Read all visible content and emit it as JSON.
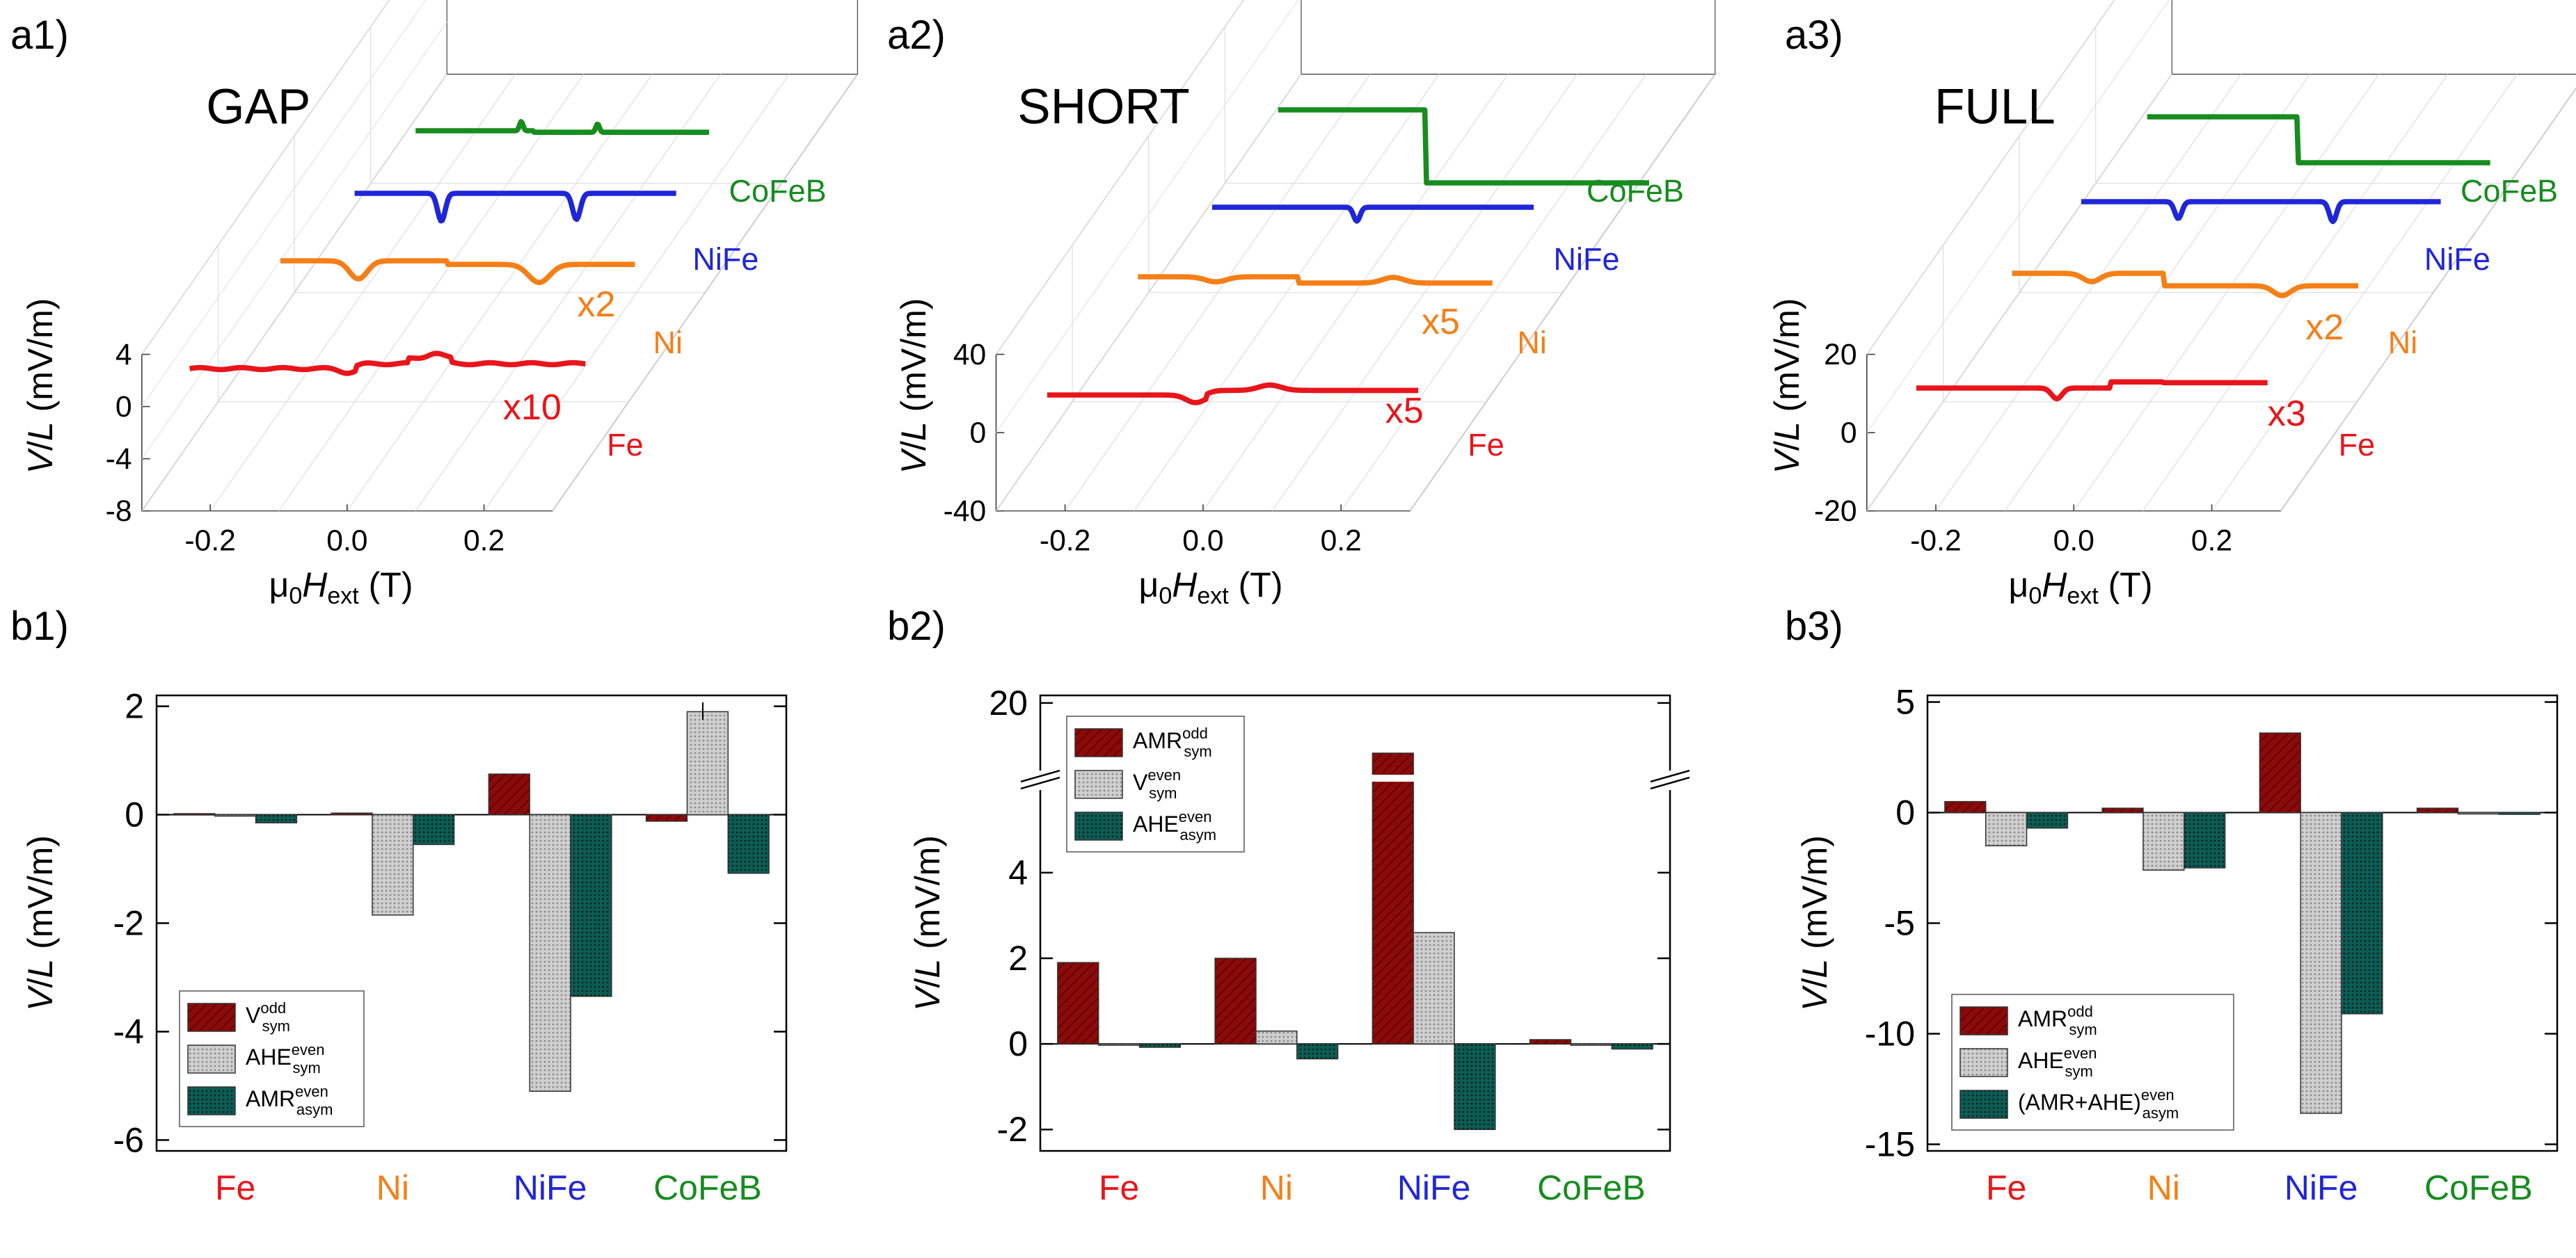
{
  "colors": {
    "Fe": "#e8151b",
    "Ni": "#f57f17",
    "NiFe": "#2026d8",
    "CoFeB": "#178c1f",
    "odd": "#8b0a0a",
    "even": "#c8c8c8",
    "third": "#0d5c54"
  },
  "chart_data": [
    {
      "panel": "a1",
      "type": "line",
      "title": "GAP",
      "x": [
        -0.3,
        -0.2,
        -0.1,
        0.0,
        0.1,
        0.2,
        0.3
      ],
      "xlabel": "μ0Hext (T)",
      "ylabel": "V/L (mV/m)",
      "yticks": [
        "4",
        "0",
        "-4",
        "-8"
      ],
      "xticks": [
        "-0.2",
        "0.0",
        "0.2"
      ],
      "ylim": [
        -8,
        4
      ],
      "series": [
        {
          "name": "Fe",
          "scale": "x10"
        },
        {
          "name": "Ni",
          "scale": "x2"
        },
        {
          "name": "NiFe",
          "scale": ""
        },
        {
          "name": "CoFeB",
          "scale": ""
        }
      ]
    },
    {
      "panel": "a2",
      "type": "line",
      "title": "SHORT",
      "xlabel": "μ0Hext (T)",
      "ylabel": "V/L (mV/m)",
      "yticks": [
        "40",
        "0",
        "-40"
      ],
      "xticks": [
        "-0.2",
        "0.0",
        "0.2"
      ],
      "ylim": [
        -40,
        40
      ],
      "series": [
        {
          "name": "Fe",
          "scale": "x5"
        },
        {
          "name": "Ni",
          "scale": "x5"
        },
        {
          "name": "NiFe",
          "scale": ""
        },
        {
          "name": "CoFeB",
          "scale": ""
        }
      ]
    },
    {
      "panel": "a3",
      "type": "line",
      "title": "FULL",
      "xlabel": "μ0Hext (T)",
      "ylabel": "V/L (mV/m)",
      "yticks": [
        "20",
        "0",
        "-20"
      ],
      "xticks": [
        "-0.2",
        "0.0",
        "0.2"
      ],
      "ylim": [
        -20,
        20
      ],
      "series": [
        {
          "name": "Fe",
          "scale": "x3"
        },
        {
          "name": "Ni",
          "scale": "x2"
        },
        {
          "name": "NiFe",
          "scale": ""
        },
        {
          "name": "CoFeB",
          "scale": ""
        }
      ]
    },
    {
      "panel": "b1",
      "type": "bar",
      "categories": [
        "Fe",
        "Ni",
        "NiFe",
        "CoFeB"
      ],
      "ylabel": "V/L (mV/m)",
      "ylim": [
        -6,
        2
      ],
      "yticks": [
        "2",
        "0",
        "-2",
        "-4",
        "-6"
      ],
      "series": [
        {
          "name": "V_sym^odd",
          "main": "V",
          "sub": "sym",
          "sup": "odd",
          "values": [
            0.02,
            0.03,
            0.75,
            -0.12
          ]
        },
        {
          "name": "AHE_sym^even",
          "main": "AHE",
          "sub": "sym",
          "sup": "even",
          "values": [
            0.0,
            -1.85,
            -5.1,
            1.9
          ]
        },
        {
          "name": "AMR_asym^even",
          "main": "AMR",
          "sub": "asym",
          "sup": "even",
          "values": [
            -0.15,
            -0.55,
            -3.35,
            -1.08
          ]
        }
      ]
    },
    {
      "panel": "b2",
      "type": "bar",
      "categories": [
        "Fe",
        "Ni",
        "NiFe",
        "CoFeB"
      ],
      "ylabel": "V/L (mV/m)",
      "ylim": [
        -2.5,
        20
      ],
      "yticks": [
        "20",
        "4",
        "2",
        "0",
        "-2"
      ],
      "series": [
        {
          "name": "AMR_sym^odd",
          "main": "AMR",
          "sub": "sym",
          "sup": "odd",
          "values": [
            1.9,
            2.0,
            18.0,
            0.1
          ]
        },
        {
          "name": "V_sym^even",
          "main": "V",
          "sub": "sym",
          "sup": "even",
          "values": [
            0.0,
            0.3,
            2.6,
            0.0
          ]
        },
        {
          "name": "AHE_asym^even",
          "main": "AHE",
          "sub": "asym",
          "sup": "even",
          "values": [
            -0.08,
            -0.35,
            -2.0,
            -0.12
          ]
        }
      ]
    },
    {
      "panel": "b3",
      "type": "bar",
      "categories": [
        "Fe",
        "Ni",
        "NiFe",
        "CoFeB"
      ],
      "ylabel": "V/L (mV/m)",
      "ylim": [
        -15,
        5
      ],
      "yticks": [
        "5",
        "0",
        "-5",
        "-10",
        "-15"
      ],
      "series": [
        {
          "name": "AMR_sym^odd",
          "main": "AMR",
          "sub": "sym",
          "sup": "odd",
          "values": [
            0.5,
            0.2,
            3.6,
            0.2
          ]
        },
        {
          "name": "AHE_sym^even",
          "main": "AHE",
          "sub": "sym",
          "sup": "even",
          "values": [
            -1.5,
            -2.6,
            -13.6,
            -0.05
          ]
        },
        {
          "name": "(AMR+AHE)_asym^even",
          "main": "(AMR+AHE)",
          "sub": "asym",
          "sup": "even",
          "values": [
            -0.7,
            -2.5,
            -9.1,
            -0.08
          ]
        }
      ]
    }
  ],
  "panel_labels": {
    "a1": "a1)",
    "a2": "a2)",
    "a3": "a3)",
    "b1": "b1)",
    "b2": "b2)",
    "b3": "b3)"
  },
  "xlabel_parts": {
    "mu": "μ",
    "zero": "0",
    "H": "H",
    "ext": "ext",
    "unit": " (T)"
  },
  "ylabel_parts": {
    "V": "V",
    "slash": "/",
    "L": "L",
    "unit": " (mV/m)"
  }
}
